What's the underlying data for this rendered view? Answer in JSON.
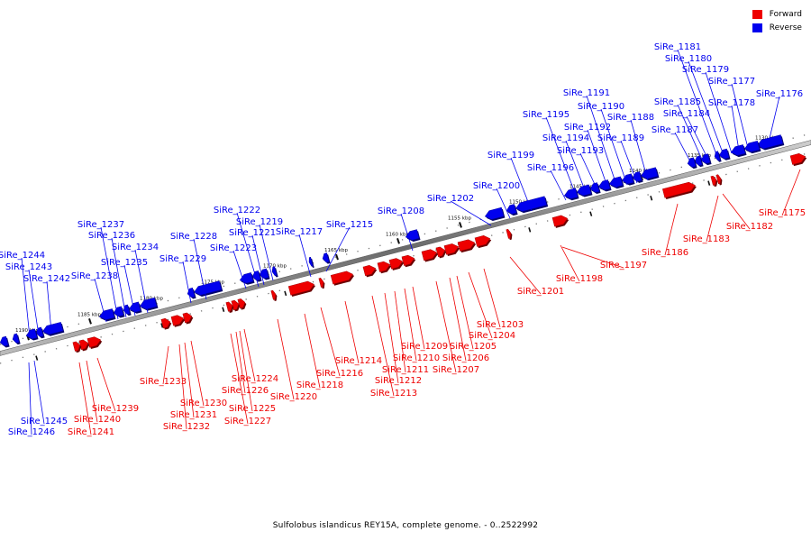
{
  "legend": {
    "forward_label": "Forward",
    "reverse_label": "Reverse",
    "forward_color": "#ee0000",
    "reverse_color": "#0000ee"
  },
  "caption": "Sulfolobus islandicus REY15A, complete genome. - 0..2522992",
  "colors": {
    "forward": "#ee0000",
    "reverse": "#0000ee",
    "axis": "#888888"
  },
  "scale_labels": [
    "1130 kbp",
    "1135 kbp",
    "1140 kbp",
    "1145 kbp",
    "1150 kbp",
    "1155 kbp",
    "1160 kbp",
    "1165 kbp",
    "1170 kbp",
    "1175 kbp",
    "1180 kbp",
    "1185 kbp",
    "1190 kbp"
  ],
  "reverse_genes": [
    "SiRe_1176",
    "SiRe_1177",
    "SiRe_1178",
    "SiRe_1179",
    "SiRe_1180",
    "SiRe_1181",
    "SiRe_1184",
    "SiRe_1185",
    "SiRe_1187",
    "SiRe_1188",
    "SiRe_1189",
    "SiRe_1190",
    "SiRe_1191",
    "SiRe_1192",
    "SiRe_1193",
    "SiRe_1194",
    "SiRe_1195",
    "SiRe_1196",
    "SiRe_1199",
    "SiRe_1200",
    "SiRe_1202",
    "SiRe_1208",
    "SiRe_1215",
    "SiRe_1217",
    "SiRe_1219",
    "SiRe_1221",
    "SiRe_1222",
    "SiRe_1223",
    "SiRe_1228",
    "SiRe_1229",
    "SiRe_1234",
    "SiRe_1235",
    "SiRe_1236",
    "SiRe_1237",
    "SiRe_1238",
    "SiRe_1242",
    "SiRe_1243",
    "SiRe_1244",
    "SiRe_1245",
    "SiRe_1246"
  ],
  "forward_genes": [
    "SiRe_1175",
    "SiRe_1182",
    "SiRe_1183",
    "SiRe_1186",
    "SiRe_1197",
    "SiRe_1198",
    "SiRe_1201",
    "SiRe_1203",
    "SiRe_1204",
    "SiRe_1205",
    "SiRe_1206",
    "SiRe_1207",
    "SiRe_1209",
    "SiRe_1210",
    "SiRe_1211",
    "SiRe_1212",
    "SiRe_1213",
    "SiRe_1214",
    "SiRe_1216",
    "SiRe_1218",
    "SiRe_1220",
    "SiRe_1224",
    "SiRe_1225",
    "SiRe_1226",
    "SiRe_1227",
    "SiRe_1230",
    "SiRe_1231",
    "SiRe_1232",
    "SiRe_1233",
    "SiRe_1239",
    "SiRe_1240",
    "SiRe_1241"
  ]
}
